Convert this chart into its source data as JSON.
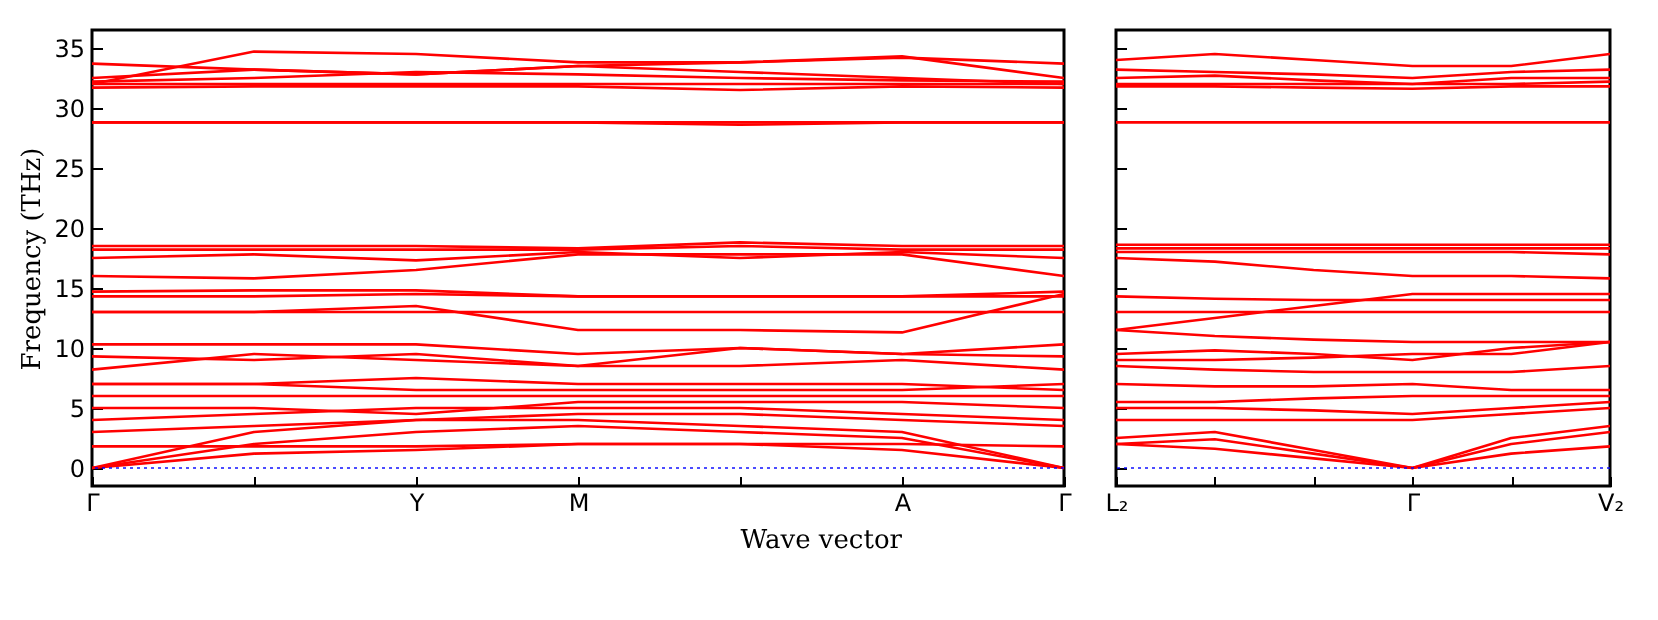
{
  "chart_data": [
    {
      "type": "line",
      "ylabel": "Frequency (THz)",
      "xlabel": "Wave vector",
      "legend": false,
      "line_style": "solid",
      "categories": [
        "Γ",
        null,
        "Y",
        "M",
        null,
        "A",
        "Γ"
      ],
      "ylim": [
        -1.5,
        36.5
      ],
      "yticks": [
        0,
        5,
        10,
        15,
        20,
        25,
        30,
        35
      ],
      "ref_lines": [
        {
          "axis": "y",
          "value": 0,
          "color": "#0000ff",
          "line_style": "dotted"
        }
      ],
      "series": [
        {
          "color": "#ff0000",
          "values": [
            0,
            1.2,
            1.5,
            2,
            2,
            1.5,
            0
          ]
        },
        {
          "color": "#ff0000",
          "values": [
            0,
            2,
            3,
            3.5,
            3,
            2.5,
            0
          ]
        },
        {
          "color": "#ff0000",
          "values": [
            0,
            3,
            4,
            4,
            3.5,
            3,
            0
          ]
        },
        {
          "color": "#ff0000",
          "values": [
            1.8,
            1.8,
            1.8,
            2,
            2,
            2,
            1.8
          ]
        },
        {
          "color": "#ff0000",
          "values": [
            3,
            3.5,
            4,
            4.5,
            4.5,
            4,
            3.5
          ]
        },
        {
          "color": "#ff0000",
          "values": [
            4,
            4.5,
            5,
            5,
            5,
            4.5,
            4
          ]
        },
        {
          "color": "#ff0000",
          "values": [
            5,
            5,
            4.5,
            5.5,
            5.5,
            5.5,
            5
          ]
        },
        {
          "color": "#ff0000",
          "values": [
            6,
            6,
            6,
            6,
            6,
            6,
            6
          ]
        },
        {
          "color": "#ff0000",
          "values": [
            7,
            7,
            6.5,
            6.5,
            6.5,
            6.5,
            7
          ]
        },
        {
          "color": "#ff0000",
          "values": [
            7,
            7,
            7.5,
            7,
            7,
            7,
            6.5
          ]
        },
        {
          "color": "#ff0000",
          "values": [
            8.2,
            9.5,
            9,
            8.5,
            8.5,
            9,
            8.2
          ]
        },
        {
          "color": "#ff0000",
          "values": [
            9.3,
            9,
            9.5,
            8.5,
            10,
            9.5,
            9.3
          ]
        },
        {
          "color": "#ff0000",
          "values": [
            10.3,
            10.3,
            10.3,
            9.5,
            10,
            9.5,
            10.3
          ]
        },
        {
          "color": "#ff0000",
          "values": [
            13,
            13,
            13.5,
            11.5,
            11.5,
            11.3,
            14.5
          ]
        },
        {
          "color": "#ff0000",
          "values": [
            13,
            13,
            13,
            13,
            13,
            13,
            13
          ]
        },
        {
          "color": "#ff0000",
          "values": [
            14.3,
            14.3,
            14.5,
            14.3,
            14.3,
            14.3,
            14.3
          ]
        },
        {
          "color": "#ff0000",
          "values": [
            14.7,
            14.8,
            14.8,
            14.3,
            14.3,
            14.3,
            14.7
          ]
        },
        {
          "color": "#ff0000",
          "values": [
            16,
            15.8,
            16.5,
            17.8,
            17.8,
            17.8,
            16
          ]
        },
        {
          "color": "#ff0000",
          "values": [
            17.5,
            17.8,
            17.3,
            18,
            17.5,
            18,
            17.5
          ]
        },
        {
          "color": "#ff0000",
          "values": [
            18.2,
            18.2,
            18.2,
            18.2,
            18.5,
            18.2,
            18.2
          ]
        },
        {
          "color": "#ff0000",
          "values": [
            18.5,
            18.5,
            18.5,
            18.3,
            18.8,
            18.5,
            18.5
          ]
        },
        {
          "color": "#ff0000",
          "values": [
            28.8,
            28.8,
            28.8,
            28.8,
            28.8,
            28.8,
            28.8
          ]
        },
        {
          "color": "#ff0000",
          "values": [
            28.8,
            28.8,
            28.8,
            28.8,
            28.6,
            28.8,
            28.8
          ]
        },
        {
          "color": "#ff0000",
          "values": [
            31.7,
            31.8,
            31.8,
            31.8,
            31.5,
            31.8,
            31.7
          ]
        },
        {
          "color": "#ff0000",
          "values": [
            32,
            32,
            32,
            32,
            32,
            32,
            32
          ]
        },
        {
          "color": "#ff0000",
          "values": [
            32.2,
            32.5,
            33,
            32.8,
            32.5,
            32.3,
            32.2
          ]
        },
        {
          "color": "#ff0000",
          "values": [
            32.5,
            33.2,
            32.8,
            33.5,
            33,
            32.5,
            32
          ]
        },
        {
          "color": "#ff0000",
          "values": [
            33.7,
            33.2,
            32.8,
            33.5,
            33.8,
            34.2,
            33.7
          ]
        },
        {
          "color": "#ff0000",
          "values": [
            32,
            34.7,
            34.5,
            33.8,
            33.8,
            34.3,
            32.5
          ]
        }
      ]
    },
    {
      "type": "line",
      "legend": false,
      "line_style": "solid",
      "tick_labels": "x",
      "categories": [
        "L₂",
        null,
        null,
        "Γ",
        null,
        "V₂"
      ],
      "ylim": [
        -1.5,
        36.5
      ],
      "yticks": [
        0,
        5,
        10,
        15,
        20,
        25,
        30,
        35
      ],
      "ref_lines": [
        {
          "axis": "y",
          "value": 0,
          "color": "#0000ff",
          "line_style": "dotted"
        }
      ],
      "series": [
        {
          "color": "#ff0000",
          "values": [
            2,
            1.6,
            0.8,
            0,
            1.2,
            1.8
          ]
        },
        {
          "color": "#ff0000",
          "values": [
            2,
            2.4,
            1.2,
            0,
            2,
            3
          ]
        },
        {
          "color": "#ff0000",
          "values": [
            2.5,
            3,
            1.5,
            0,
            2.5,
            3.5
          ]
        },
        {
          "color": "#ff0000",
          "values": [
            4,
            4,
            4,
            4,
            4.5,
            5
          ]
        },
        {
          "color": "#ff0000",
          "values": [
            5,
            5,
            4.8,
            4.5,
            5,
            5.5
          ]
        },
        {
          "color": "#ff0000",
          "values": [
            5.5,
            5.5,
            5.8,
            6,
            6,
            6
          ]
        },
        {
          "color": "#ff0000",
          "values": [
            7,
            6.8,
            6.8,
            7,
            6.5,
            6.5
          ]
        },
        {
          "color": "#ff0000",
          "values": [
            8.5,
            8.2,
            8,
            8,
            8,
            8.5
          ]
        },
        {
          "color": "#ff0000",
          "values": [
            9,
            9,
            9.2,
            9.5,
            9.5,
            10.5
          ]
        },
        {
          "color": "#ff0000",
          "values": [
            9.5,
            9.8,
            9.5,
            9,
            10,
            10.5
          ]
        },
        {
          "color": "#ff0000",
          "values": [
            11.5,
            11,
            10.7,
            10.5,
            10.5,
            10.5
          ]
        },
        {
          "color": "#ff0000",
          "values": [
            11.5,
            12.5,
            13.5,
            14.5,
            14.5,
            14.5
          ]
        },
        {
          "color": "#ff0000",
          "values": [
            13,
            13,
            13,
            13,
            13,
            13
          ]
        },
        {
          "color": "#ff0000",
          "values": [
            14.3,
            14.1,
            14,
            14,
            14,
            14
          ]
        },
        {
          "color": "#ff0000",
          "values": [
            17.5,
            17.2,
            16.5,
            16,
            16,
            15.8
          ]
        },
        {
          "color": "#ff0000",
          "values": [
            18,
            18,
            18,
            18,
            18,
            17.8
          ]
        },
        {
          "color": "#ff0000",
          "values": [
            18.3,
            18.3,
            18.3,
            18.3,
            18.3,
            18.3
          ]
        },
        {
          "color": "#ff0000",
          "values": [
            18.6,
            18.6,
            18.6,
            18.6,
            18.6,
            18.6
          ]
        },
        {
          "color": "#ff0000",
          "values": [
            28.8,
            28.8,
            28.8,
            28.8,
            28.8,
            28.8
          ]
        },
        {
          "color": "#ff0000",
          "values": [
            31.8,
            31.8,
            31.7,
            31.6,
            31.8,
            31.8
          ]
        },
        {
          "color": "#ff0000",
          "values": [
            32,
            32,
            32,
            32,
            32,
            32.2
          ]
        },
        {
          "color": "#ff0000",
          "values": [
            32.5,
            32.7,
            32.3,
            32,
            32.5,
            32.5
          ]
        },
        {
          "color": "#ff0000",
          "values": [
            33.2,
            33,
            32.8,
            32.5,
            33,
            33.2
          ]
        },
        {
          "color": "#ff0000",
          "values": [
            34,
            34.5,
            34,
            33.5,
            33.5,
            34.5
          ]
        }
      ]
    }
  ]
}
